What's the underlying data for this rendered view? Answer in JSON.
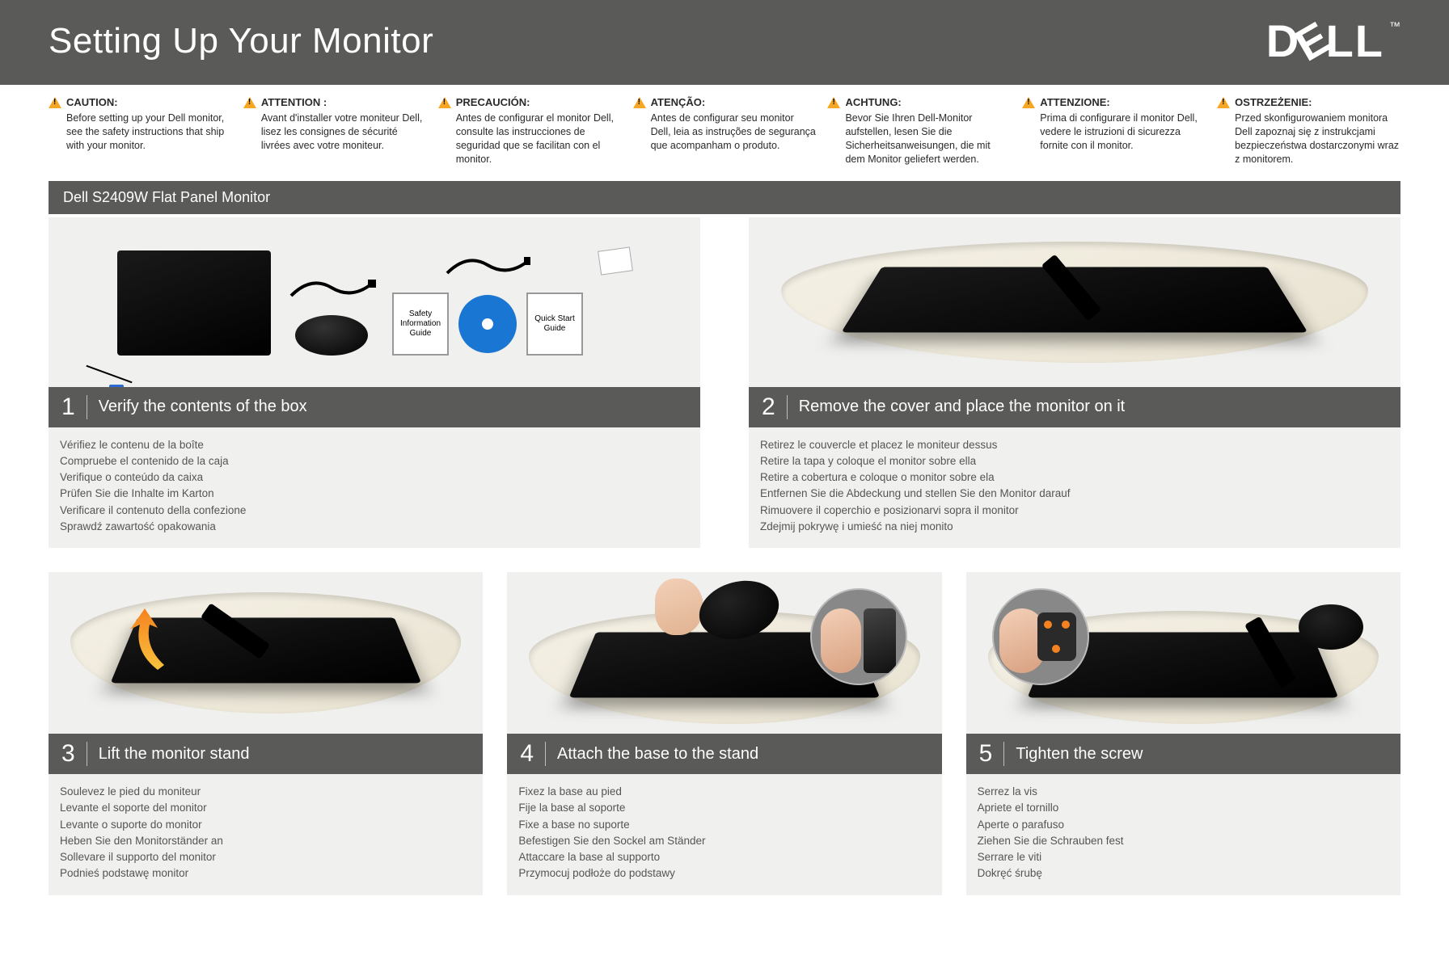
{
  "colors": {
    "header_bg": "#5a5a58",
    "body_bg": "#ffffff",
    "panel_bg": "#f0f0ee",
    "caution_icon": "#f5a623",
    "cd_blue": "#1976d2",
    "connector_blue": "#2a6bd4",
    "arrow_orange": "#f58220",
    "text_dark": "#2a2a2a",
    "text_muted": "#555555"
  },
  "header": {
    "title": "Setting Up Your Monitor",
    "logo_text": "DELL",
    "tm": "™"
  },
  "cautions": [
    {
      "label": "CAUTION:",
      "text": "Before setting up your Dell monitor, see the safety instructions that ship with your monitor."
    },
    {
      "label": "ATTENTION :",
      "text": "Avant d'installer votre moniteur Dell, lisez les consignes de sécurité livrées avec votre moniteur."
    },
    {
      "label": "PRECAUCIÓN:",
      "text": "Antes de configurar el monitor Dell, consulte las instrucciones de seguridad que se facilitan con el monitor."
    },
    {
      "label": "ATENÇÃO:",
      "text": "Antes de configurar seu monitor Dell, leia as instruções de segurança que acompanham o produto."
    },
    {
      "label": "ACHTUNG:",
      "text": "Bevor Sie Ihren Dell-Monitor aufstellen, lesen Sie die Sicherheitsanweisungen, die mit dem Monitor geliefert werden."
    },
    {
      "label": "ATTENZIONE:",
      "text": "Prima di configurare il monitor Dell, vedere le istruzioni di sicurezza fornite con il monitor."
    },
    {
      "label": "OSTRZEŻENIE:",
      "text": "Przed skonfigurowaniem monitora Dell zapoznaj się z instrukcjami bezpieczeństwa dostarczonymi wraz z monitorem."
    }
  ],
  "product_bar": "Dell S2409W Flat Panel Monitor",
  "box_items": {
    "safety_guide": "Safety Information Guide",
    "quick_start": "Quick Start Guide"
  },
  "steps": [
    {
      "num": "1",
      "title": "Verify the contents of the box",
      "translations": [
        "Vérifiez le contenu de la boîte",
        "Compruebe el contenido de la caja",
        "Verifique o conteúdo da caixa",
        "Prüfen Sie die Inhalte im Karton",
        "Verificare il contenuto della confezione",
        "Sprawdź zawartość opakowania"
      ]
    },
    {
      "num": "2",
      "title": "Remove the cover and place the monitor on it",
      "translations": [
        "Retirez le couvercle et placez le moniteur dessus",
        "Retire la tapa y coloque el monitor sobre ella",
        "Retire a cobertura e coloque o monitor sobre ela",
        "Entfernen Sie die Abdeckung und stellen Sie den Monitor darauf",
        "Rimuovere il coperchio e posizionarvi sopra il monitor",
        "Zdejmij pokrywę i umieść na niej monito"
      ]
    },
    {
      "num": "3",
      "title": "Lift the monitor stand",
      "translations": [
        "Soulevez le pied du moniteur",
        "Levante el soporte del monitor",
        "Levante o suporte do monitor",
        "Heben Sie den Monitorständer an",
        "Sollevare il supporto del monitor",
        "Podnieś podstawę monitor"
      ]
    },
    {
      "num": "4",
      "title": "Attach the base to the stand",
      "translations": [
        "Fixez la base au pied",
        "Fije la base al soporte",
        "Fixe a base no suporte",
        "Befestigen Sie den Sockel am Ständer",
        "Attaccare la base al supporto",
        "Przymocuj podłoże do podstawy"
      ]
    },
    {
      "num": "5",
      "title": "Tighten the screw",
      "translations": [
        "Serrez la vis",
        "Apriete el tornillo",
        "Aperte o parafuso",
        "Ziehen Sie die Schrauben fest",
        "Serrare le viti",
        "Dokręć śrubę"
      ]
    }
  ]
}
